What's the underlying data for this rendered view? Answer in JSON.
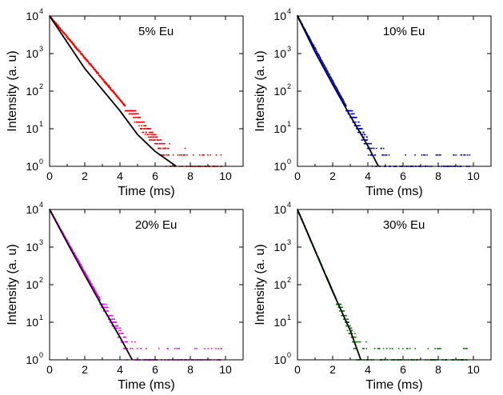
{
  "chart_data": [
    {
      "type": "scatter",
      "title": "5% Eu",
      "xlabel": "Time (ms)",
      "ylabel": "Intensity (a. u)",
      "xlim": [
        0,
        11
      ],
      "ylim": [
        1,
        10000
      ],
      "yscale": "log",
      "xticks": [
        0,
        2,
        4,
        6,
        8,
        10
      ],
      "yticks": [
        {
          "base": "10",
          "exp": "0"
        },
        {
          "base": "10",
          "exp": "1"
        },
        {
          "base": "10",
          "exp": "2"
        },
        {
          "base": "10",
          "exp": "3"
        },
        {
          "base": "10",
          "exp": "4"
        }
      ],
      "color": "#ff0000",
      "fit_color": "#000000",
      "decay": {
        "lifetime_ms": 0.78,
        "start": 10000,
        "data_end_ms": 9.8,
        "fit_end_ms": 7.2,
        "floor": 1
      },
      "fit_points": [
        [
          0,
          10000
        ],
        [
          1,
          2000
        ],
        [
          2,
          400
        ],
        [
          3,
          110
        ],
        [
          4,
          30
        ],
        [
          5,
          7
        ],
        [
          6,
          2.5
        ],
        [
          7.2,
          1
        ]
      ]
    },
    {
      "type": "scatter",
      "title": "10% Eu",
      "xlabel": "Time (ms)",
      "ylabel": "Intensity (a. u)",
      "xlim": [
        0,
        11
      ],
      "ylim": [
        1,
        10000
      ],
      "yscale": "log",
      "xticks": [
        0,
        2,
        4,
        6,
        8,
        10
      ],
      "yticks": [
        {
          "base": "10",
          "exp": "0"
        },
        {
          "base": "10",
          "exp": "1"
        },
        {
          "base": "10",
          "exp": "2"
        },
        {
          "base": "10",
          "exp": "3"
        },
        {
          "base": "10",
          "exp": "4"
        }
      ],
      "color": "#0000ff",
      "fit_color": "#000000",
      "decay": {
        "lifetime_ms": 0.5,
        "start": 10000,
        "data_end_ms": 9.8,
        "fit_end_ms": 4.6,
        "floor": 1
      },
      "fit_points": [
        [
          0,
          10000
        ],
        [
          1,
          1100
        ],
        [
          2,
          150
        ],
        [
          3,
          22
        ],
        [
          4,
          3.5
        ],
        [
          4.6,
          1
        ]
      ]
    },
    {
      "type": "scatter",
      "title": "20% Eu",
      "xlabel": "Time (ms)",
      "ylabel": "Intensity (a. u)",
      "xlim": [
        0,
        11
      ],
      "ylim": [
        1,
        10000
      ],
      "yscale": "log",
      "xticks": [
        0,
        2,
        4,
        6,
        8,
        10
      ],
      "yticks": [
        {
          "base": "10",
          "exp": "0"
        },
        {
          "base": "10",
          "exp": "1"
        },
        {
          "base": "10",
          "exp": "2"
        },
        {
          "base": "10",
          "exp": "3"
        },
        {
          "base": "10",
          "exp": "4"
        }
      ],
      "color": "#ff00ff",
      "fit_color": "#000000",
      "decay": {
        "lifetime_ms": 0.52,
        "start": 10000,
        "data_end_ms": 9.8,
        "fit_end_ms": 4.7,
        "floor": 1
      },
      "fit_points": [
        [
          0,
          10000
        ],
        [
          1,
          1300
        ],
        [
          2,
          180
        ],
        [
          3,
          26
        ],
        [
          4,
          4
        ],
        [
          4.7,
          1
        ]
      ]
    },
    {
      "type": "scatter",
      "title": "30% Eu",
      "xlabel": "Time (ms)",
      "ylabel": "Intensity (a. u)",
      "xlim": [
        0,
        11
      ],
      "ylim": [
        1,
        10000
      ],
      "yscale": "log",
      "xticks": [
        0,
        2,
        4,
        6,
        8,
        10
      ],
      "yticks": [
        {
          "base": "10",
          "exp": "0"
        },
        {
          "base": "10",
          "exp": "1"
        },
        {
          "base": "10",
          "exp": "2"
        },
        {
          "base": "10",
          "exp": "3"
        },
        {
          "base": "10",
          "exp": "4"
        }
      ],
      "color": "#007a00",
      "fit_color": "#000000",
      "decay": {
        "lifetime_ms": 0.4,
        "start": 10000,
        "data_end_ms": 9.8,
        "fit_end_ms": 3.6,
        "floor": 1
      },
      "fit_points": [
        [
          0,
          10000
        ],
        [
          1,
          800
        ],
        [
          2,
          65
        ],
        [
          3,
          6
        ],
        [
          3.6,
          1
        ]
      ]
    }
  ]
}
